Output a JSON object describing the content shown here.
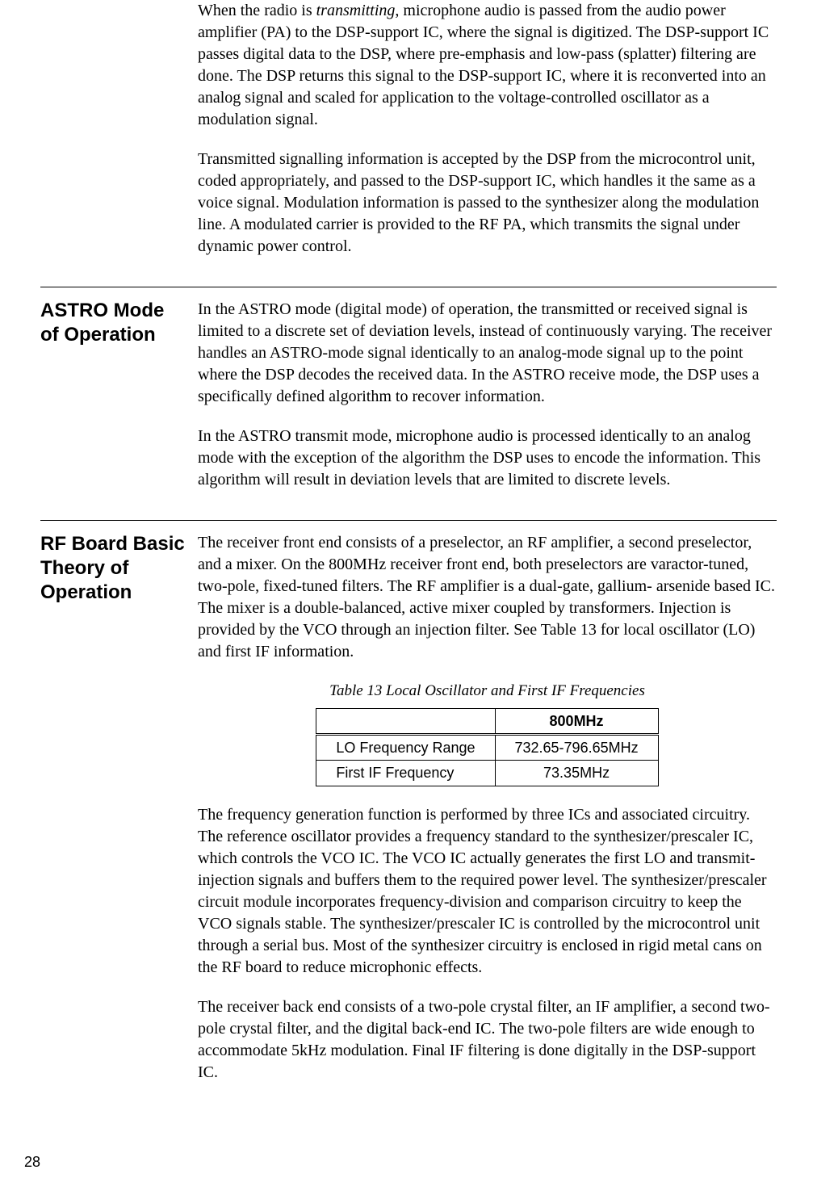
{
  "page_number": "28",
  "intro": {
    "p1_pre": "When the radio is ",
    "p1_em": "transmitting",
    "p1_post": ", microphone audio is passed from the audio power amplifier (PA) to the DSP-support IC, where the signal is digitized. The DSP-support IC passes digital data to the DSP, where pre-emphasis and low-pass (splatter) filtering are done. The DSP returns this signal to the DSP-support IC, where it is reconverted into an analog signal and scaled for application to the voltage-controlled oscillator as a modulation signal.",
    "p2": "Transmitted signalling information is accepted by the DSP from the microcontrol unit, coded appropriately, and passed to the DSP-support IC, which handles it the same as a voice signal. Modulation information is passed to the synthesizer along the modulation line. A modulated carrier is provided to the RF PA, which transmits the signal under dynamic power control."
  },
  "astro": {
    "heading": "ASTRO Mode of Operation",
    "p1": "In the ASTRO mode (digital mode) of operation, the transmitted or received signal is limited to a discrete set of deviation levels, instead of continuously varying. The receiver handles an ASTRO-mode signal identically to an analog-mode signal up to the point where the DSP decodes the received data. In the ASTRO receive mode, the DSP uses a specifically defined algorithm to recover information.",
    "p2": "In the ASTRO transmit mode, microphone audio is processed identically to an analog mode with the exception of the algorithm the DSP uses to encode the information. This algorithm will result in deviation levels that are limited to discrete levels."
  },
  "rf": {
    "heading": "RF Board Basic Theory of Operation",
    "p1": "The receiver front end consists of a preselector, an RF amplifier, a second preselector, and a mixer. On the 800MHz receiver front end, both preselectors are varactor-tuned, two-pole, fixed-tuned filters. The RF amplifier is a dual-gate, gallium- arsenide based IC. The mixer is a double-balanced, active mixer coupled by transformers. Injection is provided by the VCO through an injection filter. See Table 13 for local oscillator (LO) and first IF information.",
    "table_caption": "Table 13 Local Oscillator and First IF Frequencies",
    "table": {
      "header_blank": "",
      "header_col": "800MHz",
      "row1_label": "LO Frequency Range",
      "row1_val": "732.65-796.65MHz",
      "row2_label": "First IF Frequency",
      "row2_val": "73.35MHz"
    },
    "p2": "The frequency generation function is performed by three ICs and associated circuitry. The reference oscillator provides a frequency standard to the synthesizer/prescaler IC, which controls the VCO IC. The VCO IC actually generates the first LO and transmit-injection signals and buffers them to the required power level. The synthesizer/prescaler circuit module incorporates frequency-division and comparison circuitry to keep the VCO signals stable. The synthesizer/prescaler IC is controlled by the microcontrol unit through a serial bus. Most of the synthesizer circuitry is enclosed in rigid metal cans on the RF board to reduce microphonic effects.",
    "p3": "The receiver back end consists of a two-pole crystal filter, an IF amplifier, a second two-pole crystal filter, and the digital back-end IC. The two-pole filters are wide enough to accommodate 5kHz modulation. Final IF filtering is done digitally in the DSP-support IC."
  }
}
